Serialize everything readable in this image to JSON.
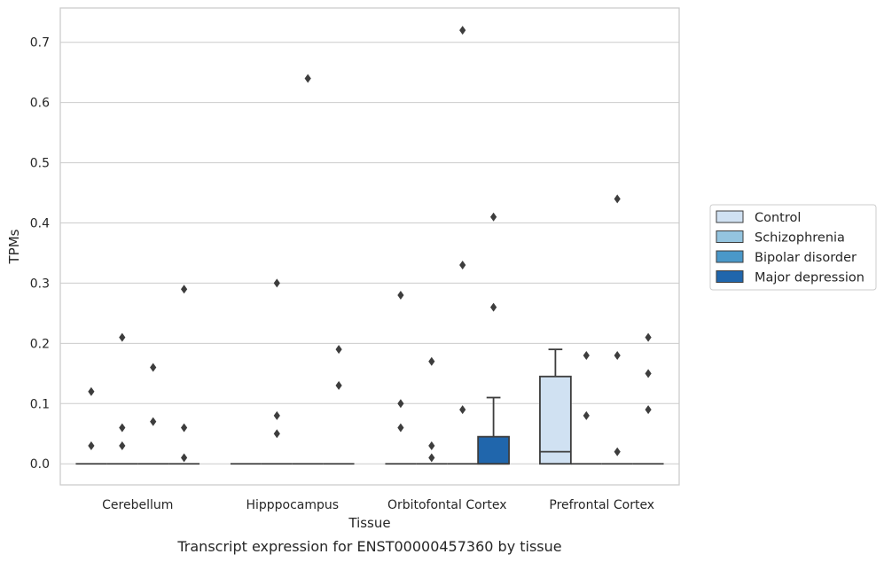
{
  "chart_data": {
    "type": "box",
    "xlabel": "Tissue",
    "ylabel": "TPMs",
    "caption": "Transcript expression for ENST00000457360 by tissue",
    "ylim": [
      -0.035,
      0.757
    ],
    "yticks": [
      0.0,
      0.1,
      0.2,
      0.3,
      0.4,
      0.5,
      0.6,
      0.7
    ],
    "ytick_labels": [
      "0.0",
      "0.1",
      "0.2",
      "0.3",
      "0.4",
      "0.5",
      "0.6",
      "0.7"
    ],
    "grid": "horizontal",
    "legend_position": "right",
    "categories": [
      "Cerebellum",
      "Hipppocampus",
      "Orbitofontal Cortex",
      "Prefrontal Cortex"
    ],
    "series": [
      {
        "name": "Control",
        "color": "#d0e1f2",
        "boxes": [
          {
            "q1": 0,
            "median": 0,
            "q3": 0,
            "whisker_low": 0,
            "whisker_high": 0,
            "outliers": [
              0.12,
              0.03
            ]
          },
          {
            "q1": 0,
            "median": 0,
            "q3": 0,
            "whisker_low": 0,
            "whisker_high": 0,
            "outliers": []
          },
          {
            "q1": 0,
            "median": 0,
            "q3": 0,
            "whisker_low": 0,
            "whisker_high": 0,
            "outliers": [
              0.28,
              0.1,
              0.06
            ]
          },
          {
            "q1": 0,
            "median": 0.02,
            "q3": 0.145,
            "whisker_low": 0,
            "whisker_high": 0.19,
            "outliers": []
          }
        ]
      },
      {
        "name": "Schizophrenia",
        "color": "#94c4df",
        "boxes": [
          {
            "q1": 0,
            "median": 0,
            "q3": 0,
            "whisker_low": 0,
            "whisker_high": 0,
            "outliers": [
              0.21,
              0.06,
              0.03
            ]
          },
          {
            "q1": 0,
            "median": 0,
            "q3": 0,
            "whisker_low": 0,
            "whisker_high": 0,
            "outliers": [
              0.3,
              0.08,
              0.05
            ]
          },
          {
            "q1": 0,
            "median": 0,
            "q3": 0,
            "whisker_low": 0,
            "whisker_high": 0,
            "outliers": [
              0.17,
              0.03,
              0.01
            ]
          },
          {
            "q1": 0,
            "median": 0,
            "q3": 0,
            "whisker_low": 0,
            "whisker_high": 0,
            "outliers": [
              0.18,
              0.08
            ]
          }
        ]
      },
      {
        "name": "Bipolar disorder",
        "color": "#4a98c9",
        "boxes": [
          {
            "q1": 0,
            "median": 0,
            "q3": 0,
            "whisker_low": 0,
            "whisker_high": 0,
            "outliers": [
              0.16,
              0.07
            ]
          },
          {
            "q1": 0,
            "median": 0,
            "q3": 0,
            "whisker_low": 0,
            "whisker_high": 0,
            "outliers": [
              0.64
            ]
          },
          {
            "q1": 0,
            "median": 0,
            "q3": 0,
            "whisker_low": 0,
            "whisker_high": 0,
            "outliers": [
              0.72,
              0.33,
              0.09
            ]
          },
          {
            "q1": 0,
            "median": 0,
            "q3": 0,
            "whisker_low": 0,
            "whisker_high": 0,
            "outliers": [
              0.44,
              0.18,
              0.02
            ]
          }
        ]
      },
      {
        "name": "Major depression",
        "color": "#2066ac",
        "boxes": [
          {
            "q1": 0,
            "median": 0,
            "q3": 0,
            "whisker_low": 0,
            "whisker_high": 0,
            "outliers": [
              0.29,
              0.06,
              0.01
            ]
          },
          {
            "q1": 0,
            "median": 0,
            "q3": 0,
            "whisker_low": 0,
            "whisker_high": 0,
            "outliers": [
              0.19,
              0.13
            ]
          },
          {
            "q1": 0,
            "median": 0,
            "q3": 0.045,
            "whisker_low": 0,
            "whisker_high": 0.11,
            "outliers": [
              0.41,
              0.26
            ]
          },
          {
            "q1": 0,
            "median": 0,
            "q3": 0,
            "whisker_low": 0,
            "whisker_high": 0,
            "outliers": [
              0.21,
              0.15,
              0.09
            ]
          }
        ]
      }
    ]
  }
}
